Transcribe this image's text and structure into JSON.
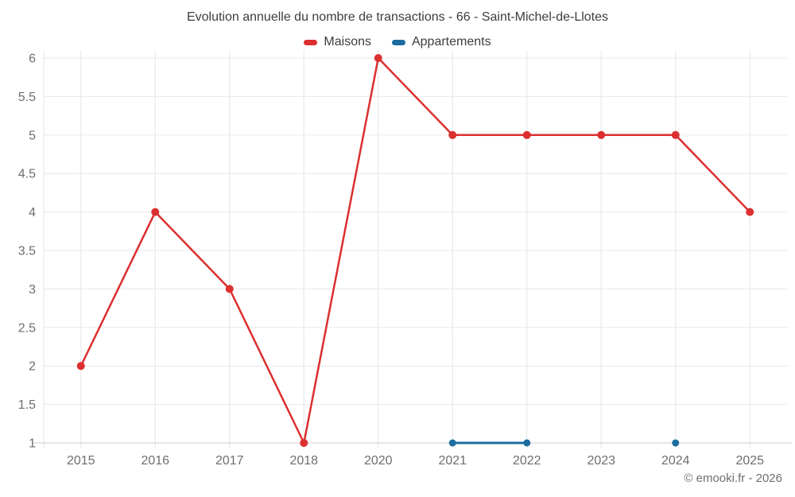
{
  "title": "Evolution annuelle du nombre de transactions - 66 - Saint-Michel-de-Llotes",
  "footer": "© emooki.fr - 2026",
  "legend": {
    "items": [
      "Maisons",
      "Appartements"
    ]
  },
  "chart_data": {
    "type": "line",
    "title": "Evolution annuelle du nombre de transactions - 66 - Saint-Michel-de-Llotes",
    "xlabel": "",
    "ylabel": "",
    "categories": [
      "2015",
      "2016",
      "2017",
      "2018",
      "2020",
      "2021",
      "2022",
      "2023",
      "2024",
      "2025"
    ],
    "series": [
      {
        "name": "Maisons",
        "color": "#dc2f2f",
        "values": [
          2,
          4,
          3,
          1,
          6,
          5,
          5,
          5,
          5,
          4
        ]
      },
      {
        "name": "Appartements",
        "color": "#1c6ca0",
        "values": [
          null,
          null,
          null,
          null,
          null,
          1,
          1,
          null,
          1,
          null
        ]
      }
    ],
    "ylim": [
      1,
      6
    ],
    "yticks": [
      1,
      1.5,
      2,
      2.5,
      3,
      3.5,
      4,
      4.5,
      5,
      5.5,
      6
    ],
    "grid": true,
    "legend_position": "top"
  }
}
